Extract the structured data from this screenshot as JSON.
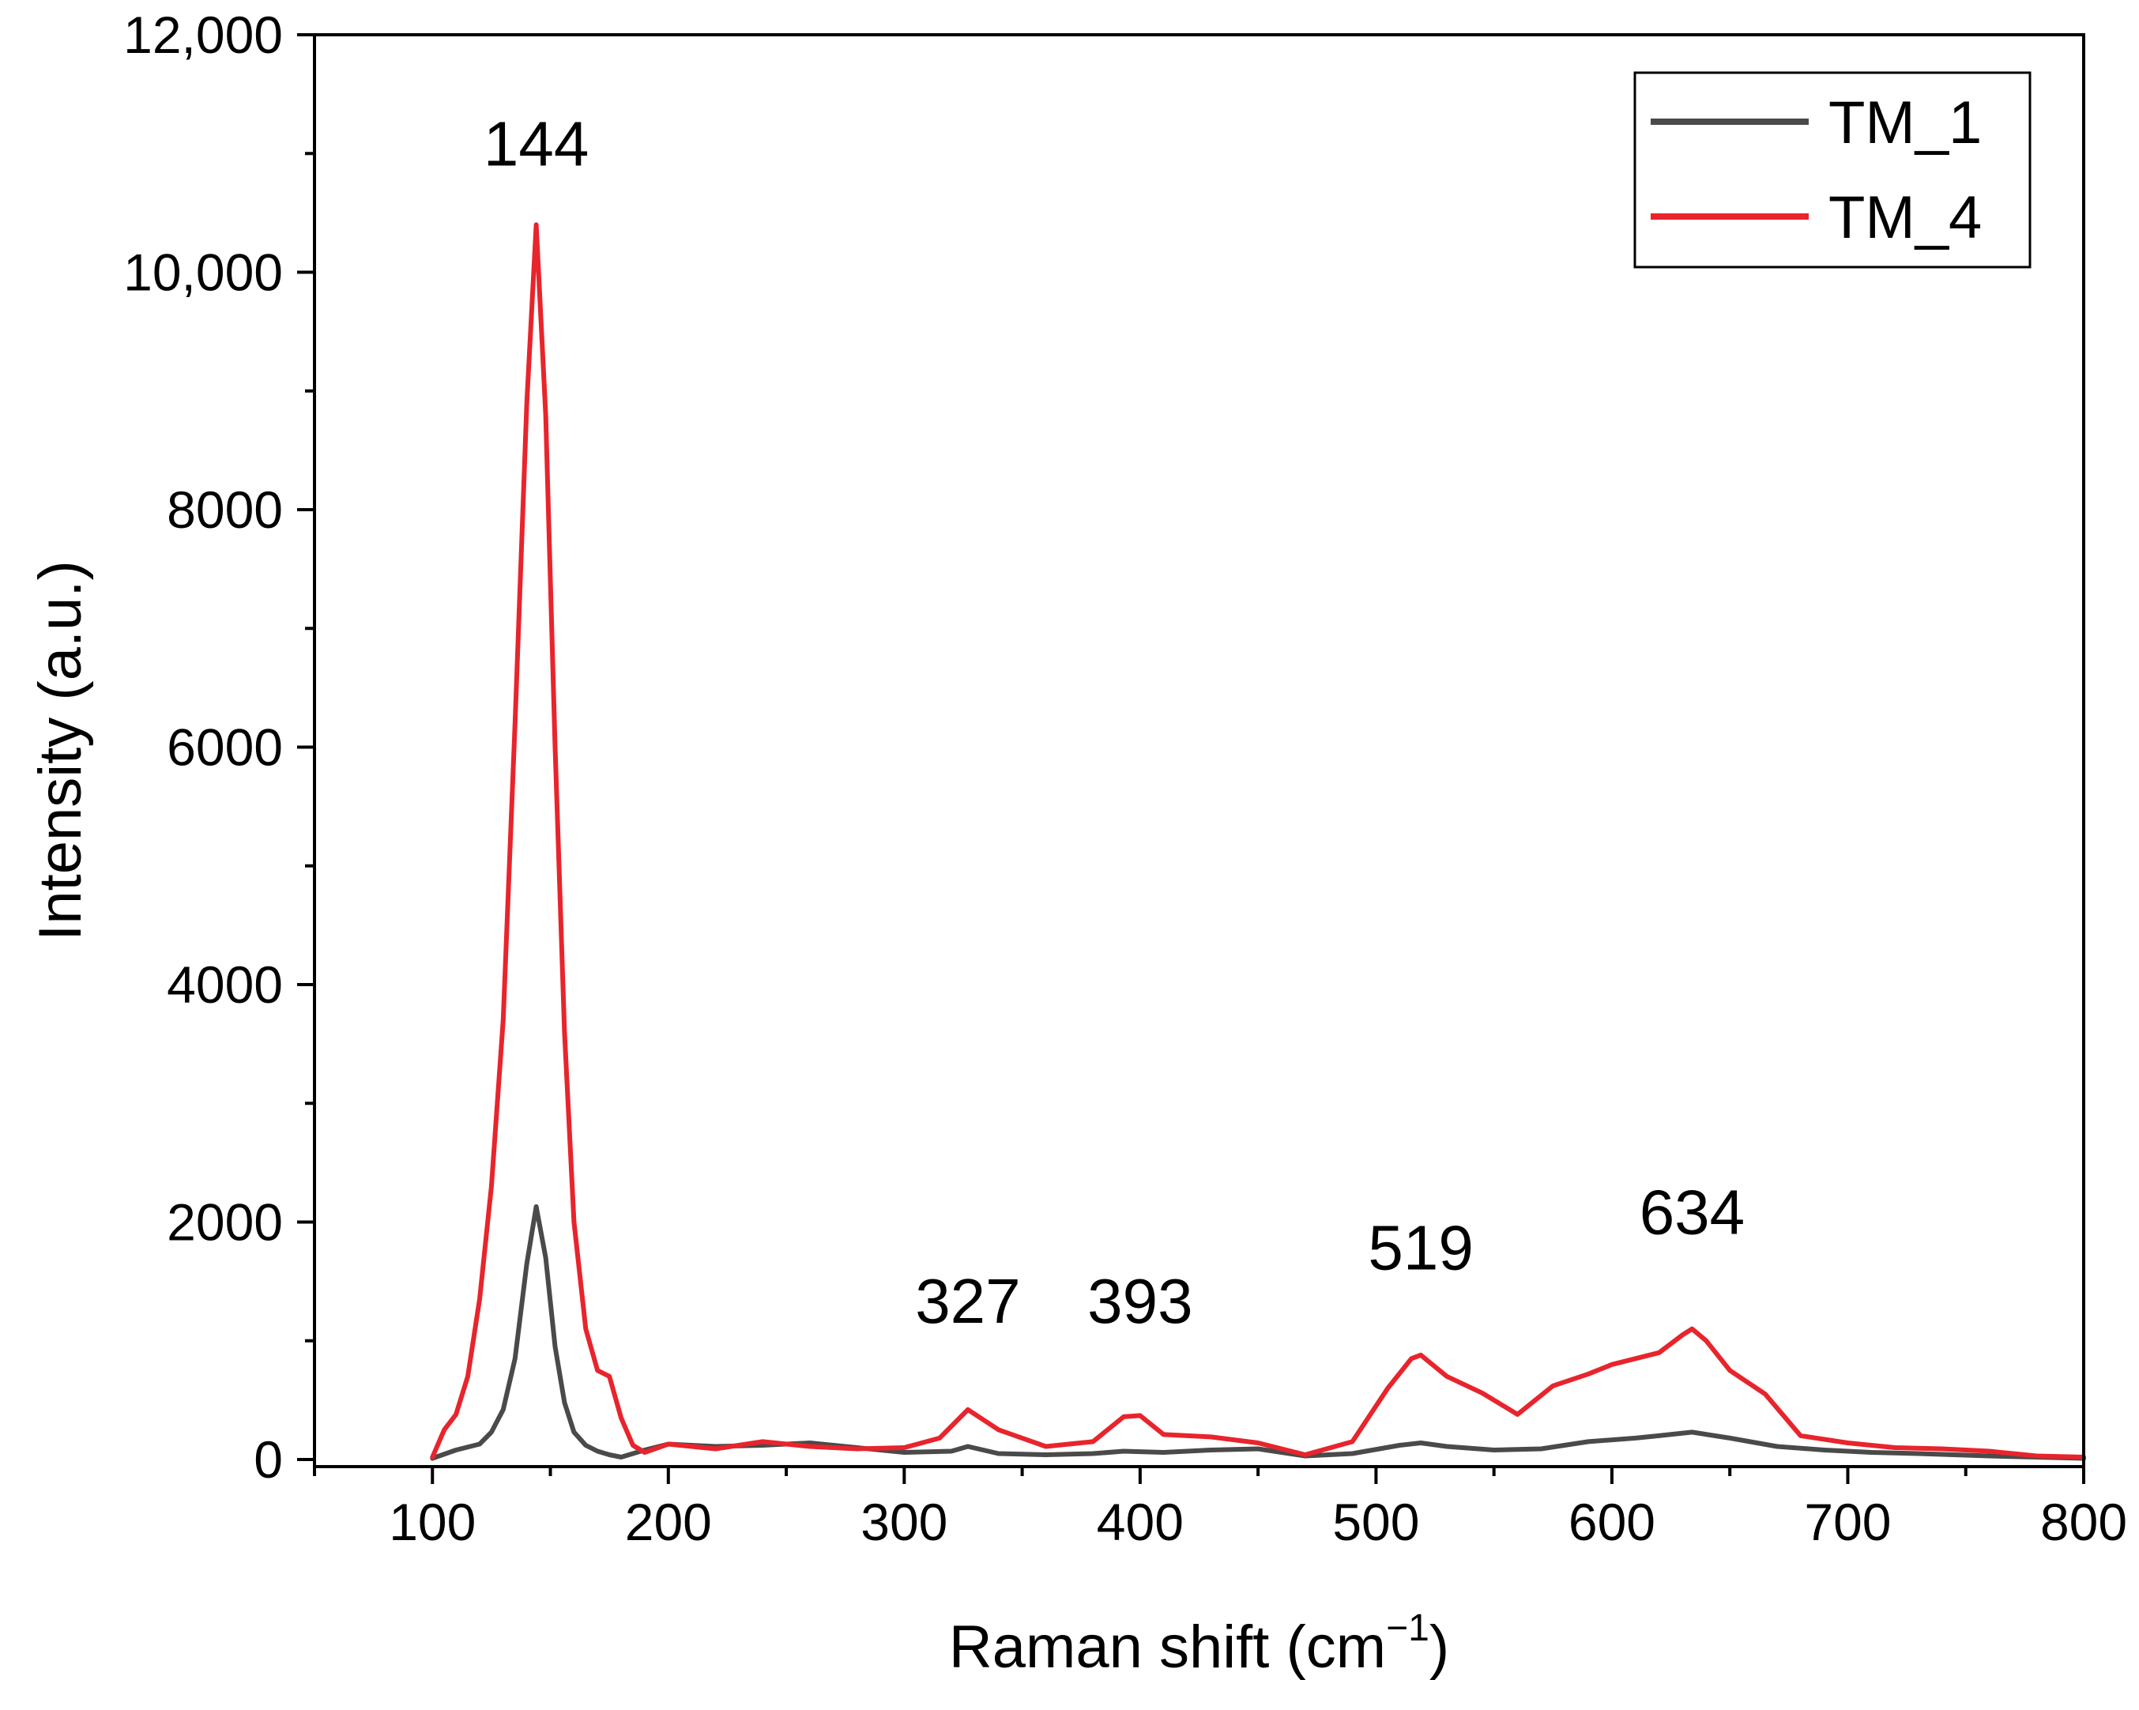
{
  "chart_data": {
    "type": "line",
    "title": "",
    "xlabel": "Raman shift (cm",
    "xlabel_sup": "−1",
    "xlabel_close": ")",
    "ylabel": "Intensity (a.u.)",
    "xlim": [
      50,
      800
    ],
    "ylim": [
      -60,
      12000
    ],
    "x_ticks": [
      100,
      200,
      300,
      400,
      500,
      600,
      700,
      800
    ],
    "x_tick_labels": [
      "100",
      "200",
      "300",
      "400",
      "500",
      "600",
      "700",
      "800"
    ],
    "y_ticks": [
      0,
      2000,
      4000,
      6000,
      8000,
      10000,
      12000
    ],
    "y_tick_labels": [
      "0",
      "2000",
      "4000",
      "6000",
      "8000",
      "10,000",
      "12,000"
    ],
    "grid": false,
    "legend_position": "top-right",
    "series": [
      {
        "name": "TM_1",
        "color": "#4a4a4a",
        "x": [
          100,
          110,
          120,
          125,
          130,
          135,
          140,
          144,
          148,
          152,
          156,
          160,
          165,
          170,
          175,
          180,
          190,
          200,
          220,
          240,
          260,
          280,
          300,
          320,
          327,
          340,
          360,
          380,
          393,
          410,
          430,
          450,
          470,
          490,
          510,
          519,
          530,
          550,
          570,
          590,
          610,
          620,
          634,
          650,
          670,
          690,
          710,
          730,
          760,
          780,
          800
        ],
        "values": [
          10,
          80,
          130,
          230,
          420,
          850,
          1650,
          2130,
          1700,
          950,
          480,
          230,
          120,
          70,
          40,
          20,
          80,
          130,
          110,
          120,
          140,
          100,
          60,
          70,
          110,
          50,
          40,
          50,
          70,
          60,
          80,
          90,
          30,
          50,
          120,
          140,
          110,
          80,
          90,
          150,
          180,
          200,
          230,
          180,
          110,
          80,
          60,
          50,
          30,
          20,
          10
        ]
      },
      {
        "name": "TM_4",
        "color": "#e8242c",
        "x": [
          100,
          105,
          110,
          115,
          120,
          125,
          130,
          135,
          140,
          144,
          148,
          152,
          156,
          160,
          165,
          170,
          175,
          180,
          185,
          190,
          200,
          220,
          240,
          260,
          280,
          300,
          315,
          327,
          340,
          360,
          380,
          393,
          400,
          410,
          430,
          450,
          470,
          490,
          505,
          515,
          519,
          530,
          545,
          560,
          575,
          590,
          600,
          620,
          630,
          634,
          640,
          650,
          665,
          680,
          700,
          720,
          740,
          760,
          780,
          800
        ],
        "values": [
          20,
          250,
          380,
          700,
          1350,
          2300,
          3700,
          6200,
          8900,
          10400,
          8800,
          6000,
          3600,
          2000,
          1100,
          750,
          700,
          350,
          120,
          60,
          130,
          90,
          150,
          110,
          90,
          100,
          180,
          420,
          250,
          110,
          150,
          360,
          370,
          210,
          190,
          140,
          40,
          150,
          600,
          850,
          880,
          700,
          560,
          380,
          620,
          720,
          800,
          900,
          1050,
          1100,
          1000,
          750,
          550,
          200,
          140,
          100,
          90,
          70,
          30,
          20
        ]
      }
    ],
    "annotations": [
      {
        "text": "144",
        "x": 144,
        "y": 10900
      },
      {
        "text": "327",
        "x": 327,
        "y": 1150
      },
      {
        "text": "393",
        "x": 400,
        "y": 1150
      },
      {
        "text": "519",
        "x": 519,
        "y": 1600
      },
      {
        "text": "634",
        "x": 634,
        "y": 1900
      }
    ]
  }
}
